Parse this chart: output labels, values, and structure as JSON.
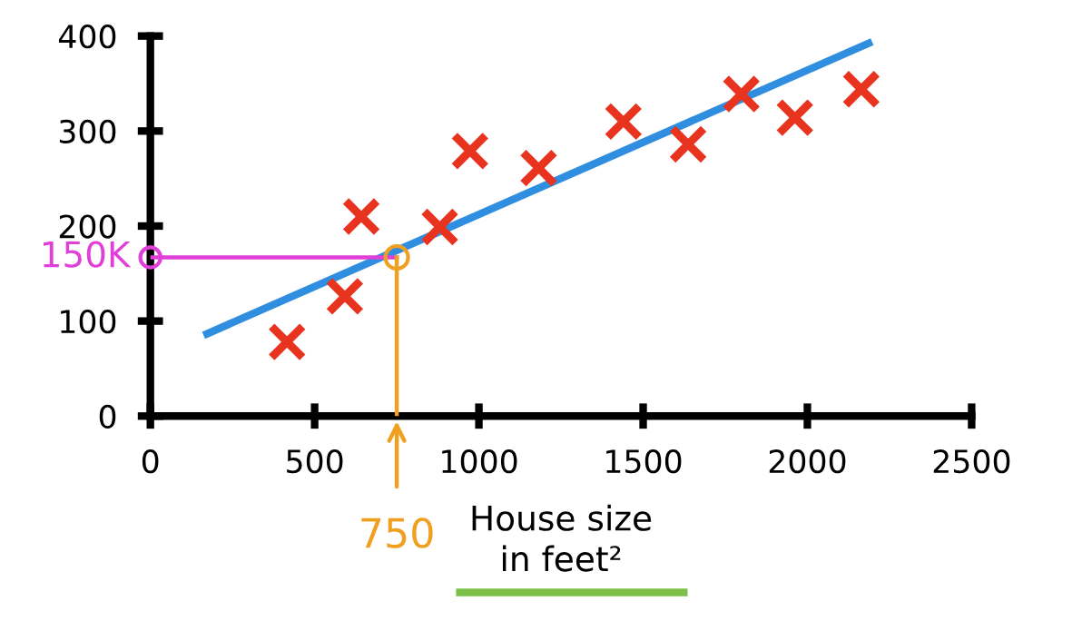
{
  "chart_data": {
    "type": "scatter",
    "xlabel": "House size\nin feet²",
    "xlim": [
      0,
      2500
    ],
    "xticks": [
      0,
      500,
      1000,
      1500,
      2000,
      2500
    ],
    "ylim": [
      0,
      400
    ],
    "yticks": [
      0,
      100,
      200,
      300,
      400
    ],
    "grid": false,
    "series": [
      {
        "color": "#e8331f",
        "marker": "cross",
        "x": [
          416,
          592,
          642,
          881,
          973,
          1182,
          1440,
          1637,
          1799,
          1962,
          2164
        ],
        "values": [
          78,
          126,
          210,
          199,
          279,
          261,
          310,
          286,
          339,
          314,
          344
        ]
      },
      {
        "type": "line",
        "color": "#2f8ee0",
        "line_style": "solid",
        "marker": "none",
        "x": [
          162,
          2197
        ],
        "values": [
          85,
          394
        ]
      }
    ],
    "ref_lines": [
      {
        "axis": "y",
        "value": 167,
        "label": "150K",
        "color": "#e040d8"
      },
      {
        "axis": "x",
        "value": 750,
        "label": "750",
        "color": "#f0a020"
      }
    ]
  }
}
